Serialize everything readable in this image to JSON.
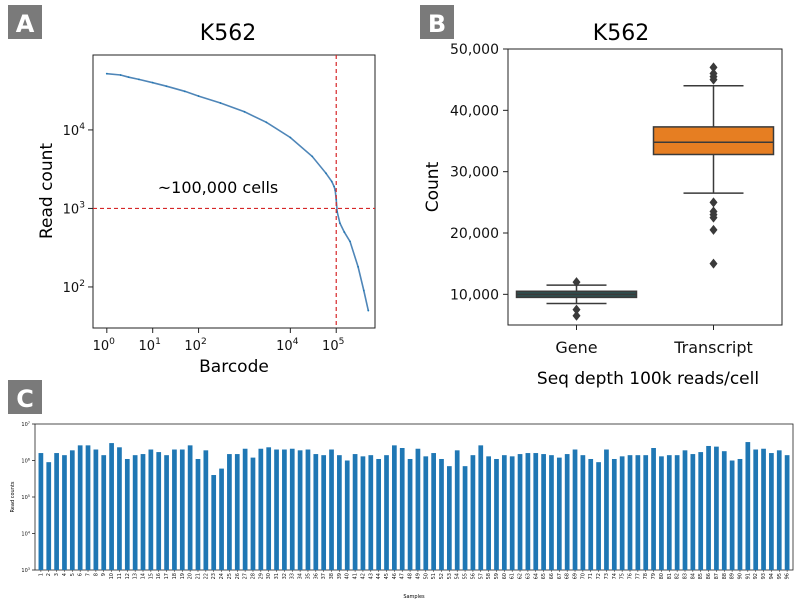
{
  "panels": {
    "a": {
      "label": "A"
    },
    "b": {
      "label": "B"
    },
    "c": {
      "label": "C"
    }
  },
  "chart_data": [
    {
      "type": "scatter",
      "panel": "A",
      "title": "K562",
      "xlabel": "Barcode",
      "ylabel": "Read count",
      "xscale": "log",
      "yscale": "log",
      "xlim": [
        0.5,
        700000
      ],
      "ylim": [
        30,
        90000
      ],
      "xticks": [
        1,
        10,
        100,
        10000,
        100000
      ],
      "xtick_labels": [
        "10",
        "10",
        "10",
        "10",
        "10"
      ],
      "xtick_exponents": [
        "0",
        "1",
        "2",
        "4",
        "5"
      ],
      "yticks": [
        100,
        1000,
        10000
      ],
      "ytick_labels": [
        "10",
        "10",
        "10"
      ],
      "ytick_exponents": [
        "2",
        "3",
        "4"
      ],
      "series": [
        {
          "x": [
            1,
            2,
            3,
            5,
            10,
            20,
            50,
            100,
            300,
            1000,
            3000,
            10000,
            30000,
            60000,
            80000,
            90000,
            95000,
            100000,
            105000,
            120000,
            150000,
            200000,
            300000,
            400000,
            500000
          ],
          "y": [
            52000,
            50000,
            47000,
            44000,
            40000,
            36000,
            31000,
            27000,
            22000,
            17000,
            12500,
            8000,
            4600,
            2800,
            2200,
            1900,
            1700,
            1300,
            900,
            650,
            500,
            380,
            180,
            90,
            50
          ]
        }
      ],
      "reference_lines": [
        {
          "axis": "y",
          "value": 1000
        },
        {
          "axis": "x",
          "value": 100000
        }
      ],
      "annotation": "~100,000 cells",
      "grid": false
    },
    {
      "type": "box",
      "panel": "B",
      "title": "K562",
      "xlabel": "Seq depth 100k reads/cell",
      "ylabel": "Count",
      "ylim": [
        5000,
        50000
      ],
      "yticks": [
        10000,
        20000,
        30000,
        40000,
        50000
      ],
      "ytick_labels": [
        "10,000",
        "20,000",
        "30,000",
        "40,000",
        "50,000"
      ],
      "categories": [
        "Gene",
        "Transcript"
      ],
      "boxes": [
        {
          "category": "Gene",
          "color": "#2f4f4f",
          "min": 8500,
          "q1": 9500,
          "median": 10000,
          "q3": 10500,
          "max": 11500,
          "outliers": [
            6500,
            7500,
            12000
          ]
        },
        {
          "category": "Transcript",
          "color": "#e67e22",
          "min": 26500,
          "q1": 32800,
          "median": 34800,
          "q3": 37300,
          "max": 44000,
          "outliers": [
            15000,
            20500,
            22500,
            23000,
            23500,
            25000,
            45000,
            45500,
            46000,
            47000
          ]
        }
      ],
      "grid": false
    },
    {
      "type": "bar",
      "panel": "C",
      "xlabel": "Samples",
      "ylabel": "Read counts",
      "yscale": "log",
      "ylim": [
        1000,
        10000000
      ],
      "yticks": [
        1000,
        10000,
        100000,
        1000000,
        10000000
      ],
      "ytick_labels": [
        "10",
        "10",
        "10",
        "10",
        "10"
      ],
      "ytick_exponents": [
        "3",
        "4",
        "5",
        "6",
        "7"
      ],
      "color": "#1f77b4",
      "categories": [
        "1",
        "2",
        "3",
        "4",
        "5",
        "6",
        "7",
        "8",
        "9",
        "10",
        "11",
        "12",
        "13",
        "14",
        "15",
        "16",
        "17",
        "18",
        "19",
        "20",
        "21",
        "22",
        "23",
        "24",
        "25",
        "26",
        "27",
        "28",
        "29",
        "30",
        "31",
        "32",
        "33",
        "34",
        "35",
        "36",
        "37",
        "38",
        "39",
        "40",
        "41",
        "42",
        "43",
        "44",
        "45",
        "46",
        "47",
        "48",
        "49",
        "50",
        "51",
        "52",
        "53",
        "54",
        "55",
        "56",
        "57",
        "58",
        "59",
        "60",
        "61",
        "62",
        "63",
        "64",
        "65",
        "66",
        "67",
        "68",
        "69",
        "70",
        "71",
        "72",
        "73",
        "74",
        "75",
        "76",
        "77",
        "78",
        "79",
        "80",
        "81",
        "82",
        "83",
        "84",
        "85",
        "86",
        "87",
        "88",
        "89",
        "90",
        "91",
        "92",
        "93",
        "94",
        "95",
        "96"
      ],
      "values": [
        1600000,
        900000,
        1600000,
        1400000,
        1900000,
        2600000,
        2600000,
        2000000,
        1400000,
        3000000,
        2300000,
        1100000,
        1400000,
        1500000,
        2000000,
        1700000,
        1400000,
        2000000,
        2000000,
        2600000,
        1100000,
        1900000,
        400000,
        600000,
        1500000,
        1500000,
        2100000,
        1200000,
        2100000,
        2300000,
        2000000,
        2000000,
        2100000,
        1900000,
        2000000,
        1500000,
        1400000,
        2000000,
        1400000,
        1000000,
        1500000,
        1300000,
        1400000,
        1100000,
        1400000,
        2600000,
        2200000,
        1100000,
        2100000,
        1300000,
        1600000,
        1100000,
        700000,
        1900000,
        700000,
        1400000,
        2600000,
        1300000,
        1100000,
        1400000,
        1300000,
        1500000,
        1600000,
        1600000,
        1500000,
        1400000,
        1200000,
        1500000,
        2000000,
        1400000,
        1100000,
        900000,
        2000000,
        1100000,
        1300000,
        1400000,
        1400000,
        1400000,
        2200000,
        1300000,
        1400000,
        1400000,
        1900000,
        1500000,
        1700000,
        2500000,
        2400000,
        1800000,
        1000000,
        1100000,
        3200000,
        2000000,
        2100000,
        1600000,
        1900000,
        1400000
      ],
      "grid": false
    }
  ]
}
